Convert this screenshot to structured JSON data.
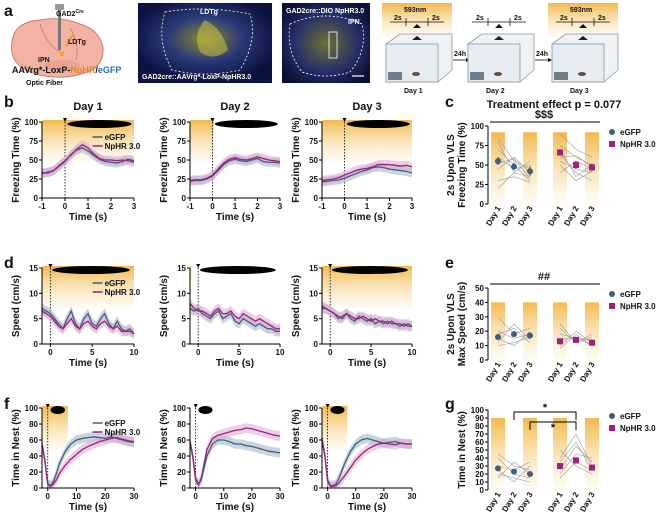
{
  "figure": {
    "panel_labels": [
      "a",
      "b",
      "c",
      "d",
      "e",
      "f",
      "g"
    ],
    "panel_a": {
      "schematic": {
        "mouse_line": "GAD2",
        "mouse_line_sup": "Cre",
        "target": "LDTg",
        "injection": "IPN",
        "virus_prefix": "AAVrg*-LoxP-",
        "virus_npHR": "NpHR",
        "virus_sep": "/",
        "virus_egfp": "eGFP",
        "fiber": "Optic Fiber"
      },
      "micrograph1": {
        "region": "LDTg",
        "caption": "GAD2cre::AAVrg*-LoxP-NpHR3.0"
      },
      "micrograph2": {
        "caption": "GAD2cre::DIO NpHR3.0",
        "region": "IPN"
      },
      "protocol": {
        "light": "593nm",
        "pre": "2s",
        "post": "2s",
        "interval": "24h",
        "days": [
          "Day 1",
          "Day 2",
          "Day 3"
        ]
      }
    },
    "panel_c_title": "Treatment effect p = 0.077",
    "legend": {
      "egfp": "eGFP",
      "nphr": "NpHR 3.0"
    },
    "colors": {
      "egfp": "#3f5f78",
      "nphr": "#a0207e",
      "light": "#f6c15e",
      "egfp_band": "#9fb3c4",
      "nphr_band": "#dba8cf"
    }
  },
  "chart_data": [
    {
      "id": "b1",
      "type": "line",
      "title": "Day 1",
      "xlabel": "Time (s)",
      "ylabel": "Freezing Time (%)",
      "xlim": [
        -1,
        3
      ],
      "ylim": [
        0,
        100
      ],
      "xticks": [
        -1,
        0,
        1,
        2,
        3
      ],
      "yticks": [
        0,
        25,
        50,
        75,
        100
      ],
      "legend": [
        "eGFP",
        "NpHR 3.0"
      ],
      "x": [
        -1,
        -0.75,
        -0.5,
        -0.25,
        0,
        0.25,
        0.5,
        0.75,
        1,
        1.25,
        1.5,
        1.75,
        2,
        2.25,
        2.5,
        2.75,
        3
      ],
      "series": [
        {
          "name": "eGFP",
          "values": [
            32,
            34,
            36,
            42,
            48,
            57,
            63,
            66,
            62,
            56,
            51,
            48,
            47,
            46,
            48,
            51,
            49
          ]
        },
        {
          "name": "NpHR 3.0",
          "values": [
            33,
            33,
            36,
            43,
            49,
            56,
            64,
            70,
            66,
            58,
            52,
            50,
            50,
            49,
            50,
            49,
            47
          ]
        }
      ]
    },
    {
      "id": "b2",
      "type": "line",
      "title": "Day 2",
      "xlabel": "Time (s)",
      "ylabel": "Freezing Time (%)",
      "xlim": [
        -1,
        3
      ],
      "ylim": [
        0,
        100
      ],
      "xticks": [
        -1,
        0,
        1,
        2,
        3
      ],
      "yticks": [
        0,
        25,
        50,
        75,
        100
      ],
      "x": [
        -1,
        -0.75,
        -0.5,
        -0.25,
        0,
        0.25,
        0.5,
        0.75,
        1,
        1.25,
        1.5,
        1.75,
        2,
        2.25,
        2.5,
        2.75,
        3
      ],
      "series": [
        {
          "name": "eGFP",
          "values": [
            22,
            23,
            23,
            25,
            29,
            36,
            44,
            49,
            51,
            49,
            48,
            50,
            52,
            48,
            47,
            47,
            46
          ]
        },
        {
          "name": "NpHR 3.0",
          "values": [
            23,
            24,
            24,
            26,
            30,
            38,
            46,
            51,
            53,
            51,
            50,
            52,
            54,
            52,
            50,
            49,
            48
          ]
        }
      ]
    },
    {
      "id": "b3",
      "type": "line",
      "title": "Day 3",
      "xlabel": "Time (s)",
      "ylabel": "Freezing Time (%)",
      "xlim": [
        -1,
        3
      ],
      "ylim": [
        0,
        100
      ],
      "xticks": [
        -1,
        0,
        1,
        2,
        3
      ],
      "yticks": [
        0,
        25,
        50,
        75,
        100
      ],
      "x": [
        -1,
        -0.75,
        -0.5,
        -0.25,
        0,
        0.25,
        0.5,
        0.75,
        1,
        1.25,
        1.5,
        1.75,
        2,
        2.25,
        2.5,
        2.75,
        3
      ],
      "series": [
        {
          "name": "eGFP",
          "values": [
            21,
            22,
            23,
            24,
            26,
            29,
            32,
            35,
            37,
            40,
            41,
            40,
            38,
            37,
            36,
            35,
            33
          ]
        },
        {
          "name": "NpHR 3.0",
          "values": [
            23,
            24,
            25,
            27,
            30,
            33,
            36,
            38,
            39,
            41,
            44,
            44,
            44,
            43,
            42,
            43,
            41
          ]
        }
      ]
    },
    {
      "id": "c",
      "type": "scatter",
      "title": "Treatment effect p = 0.077",
      "ylabel": "2s Upon VLS Freezing Time (%)",
      "ylim": [
        0,
        100
      ],
      "yticks": [
        0,
        25,
        50,
        75,
        100
      ],
      "categories": [
        "Day 1",
        "Day 2",
        "Day 3",
        "Day 1",
        "Day 2",
        "Day 3"
      ],
      "annotation": "$$$",
      "series": [
        {
          "name": "eGFP",
          "values": [
            55,
            48,
            42
          ],
          "errors": [
            5,
            5,
            6
          ]
        },
        {
          "name": "NpHR 3.0",
          "values": [
            66,
            50,
            47
          ],
          "errors": [
            4,
            5,
            5
          ]
        }
      ]
    },
    {
      "id": "d1",
      "type": "line",
      "xlabel": "Time (s)",
      "ylabel": "Speed (cm/s)",
      "xlim": [
        -1,
        10
      ],
      "ylim": [
        0,
        15
      ],
      "xticks": [
        0,
        5,
        10
      ],
      "yticks": [
        0,
        5,
        10,
        15
      ],
      "legend": [
        "eGFP",
        "NpHR 3.0"
      ],
      "x": [
        -1,
        -0.5,
        0,
        0.5,
        1,
        1.5,
        2,
        2.5,
        3,
        3.5,
        4,
        4.5,
        5,
        5.5,
        6,
        6.5,
        7,
        7.5,
        8,
        8.5,
        9,
        9.5,
        10
      ],
      "series": [
        {
          "name": "eGFP",
          "values": [
            7,
            6.5,
            6,
            5,
            4,
            3,
            5,
            6.5,
            4,
            3,
            5,
            6,
            4,
            3.5,
            5,
            6,
            4,
            3,
            4.5,
            3,
            2.5,
            3,
            2
          ]
        },
        {
          "name": "NpHR 3.0",
          "values": [
            6.5,
            6,
            5.5,
            4.5,
            3.5,
            3,
            4,
            5,
            3.5,
            3,
            4,
            4.5,
            3.5,
            3,
            4,
            4.5,
            3.5,
            3,
            3.5,
            2.5,
            2.5,
            2.5,
            2
          ]
        }
      ]
    },
    {
      "id": "d2",
      "type": "line",
      "xlabel": "Time (s)",
      "ylabel": "Speed (cm/s)",
      "xlim": [
        -1,
        10
      ],
      "ylim": [
        0,
        15
      ],
      "xticks": [
        0,
        5,
        10
      ],
      "yticks": [
        0,
        5,
        10,
        15
      ],
      "x": [
        -1,
        -0.5,
        0,
        0.5,
        1,
        1.5,
        2,
        2.5,
        3,
        3.5,
        4,
        4.5,
        5,
        5.5,
        6,
        6.5,
        7,
        7.5,
        8,
        8.5,
        9,
        9.5,
        10
      ],
      "series": [
        {
          "name": "eGFP",
          "values": [
            7,
            6.5,
            7,
            6,
            5.5,
            5,
            6,
            6.5,
            5,
            5.5,
            6,
            4.5,
            4,
            5,
            4.5,
            4,
            3.5,
            4,
            3.5,
            3,
            3,
            2.5,
            2.5
          ]
        },
        {
          "name": "NpHR 3.0",
          "values": [
            8,
            7,
            6.5,
            6.5,
            6,
            5.5,
            6.5,
            7,
            6,
            6,
            6.5,
            5.5,
            5,
            6,
            5.5,
            5,
            4.5,
            5,
            4.5,
            4,
            3.5,
            3,
            3
          ]
        }
      ]
    },
    {
      "id": "d3",
      "type": "line",
      "xlabel": "Time (s)",
      "ylabel": "Speed (cm/s)",
      "xlim": [
        -1,
        10
      ],
      "ylim": [
        0,
        15
      ],
      "xticks": [
        0,
        5,
        10
      ],
      "yticks": [
        0,
        5,
        10,
        15
      ],
      "x": [
        -1,
        -0.5,
        0,
        0.5,
        1,
        1.5,
        2,
        2.5,
        3,
        3.5,
        4,
        4.5,
        5,
        5.5,
        6,
        6.5,
        7,
        7.5,
        8,
        8.5,
        9,
        9.5,
        10
      ],
      "series": [
        {
          "name": "eGFP",
          "values": [
            7,
            7,
            6.5,
            6,
            5,
            5.5,
            6,
            5,
            4.5,
            5.5,
            5,
            4.5,
            5,
            4,
            4.5,
            4,
            4.5,
            4,
            4,
            3.5,
            4,
            3.5,
            3.5
          ]
        },
        {
          "name": "NpHR 3.0",
          "values": [
            7.5,
            7,
            6.5,
            6,
            5.5,
            5,
            6,
            5.5,
            5,
            5,
            5.5,
            5,
            4.5,
            5,
            4.5,
            4.5,
            4,
            4.5,
            4,
            4,
            3.5,
            4,
            3.5
          ]
        }
      ]
    },
    {
      "id": "e",
      "type": "scatter",
      "ylabel": "2s Upon VLS Max Speed (cm/s)",
      "ylim": [
        0,
        50
      ],
      "yticks": [
        0,
        10,
        20,
        30,
        40,
        50
      ],
      "categories": [
        "Day 1",
        "Day 2",
        "Day 3",
        "Day 1",
        "Day 2",
        "Day 3"
      ],
      "annotation": "##",
      "series": [
        {
          "name": "eGFP",
          "values": [
            16,
            18,
            17
          ],
          "errors": [
            2,
            2,
            2
          ]
        },
        {
          "name": "NpHR 3.0",
          "values": [
            13,
            14,
            12
          ],
          "errors": [
            2,
            2,
            2
          ]
        }
      ]
    },
    {
      "id": "f1",
      "type": "line",
      "xlabel": "Time (s)",
      "ylabel": "Time in Nest (%)",
      "xlim": [
        -2,
        30
      ],
      "ylim": [
        0,
        100
      ],
      "xticks": [
        0,
        10,
        20,
        30
      ],
      "yticks": [
        0,
        20,
        40,
        60,
        80,
        100
      ],
      "legend": [
        "eGFP",
        "NpHR 3.0"
      ],
      "x": [
        -2,
        -1,
        0,
        1,
        2,
        3,
        4,
        6,
        8,
        10,
        12,
        14,
        16,
        18,
        20,
        22,
        24,
        26,
        28,
        30
      ],
      "series": [
        {
          "name": "eGFP",
          "values": [
            55,
            35,
            5,
            3,
            8,
            18,
            30,
            45,
            55,
            60,
            62,
            63,
            64,
            63,
            62,
            64,
            62,
            60,
            58,
            57
          ]
        },
        {
          "name": "NpHR 3.0",
          "values": [
            55,
            33,
            4,
            2,
            5,
            10,
            18,
            28,
            36,
            42,
            48,
            52,
            55,
            58,
            60,
            62,
            63,
            61,
            59,
            58
          ]
        }
      ]
    },
    {
      "id": "f2",
      "type": "line",
      "xlabel": "Time (s)",
      "ylabel": "Time in Nest (%)",
      "xlim": [
        -2,
        30
      ],
      "ylim": [
        0,
        100
      ],
      "xticks": [
        0,
        10,
        20,
        30
      ],
      "yticks": [
        0,
        20,
        40,
        60,
        80,
        100
      ],
      "x": [
        -2,
        -1,
        0,
        1,
        2,
        3,
        4,
        6,
        8,
        10,
        12,
        14,
        16,
        18,
        20,
        22,
        24,
        26,
        28,
        30
      ],
      "series": [
        {
          "name": "eGFP",
          "values": [
            58,
            40,
            12,
            5,
            10,
            25,
            40,
            55,
            60,
            60,
            58,
            55,
            55,
            53,
            52,
            50,
            48,
            46,
            45,
            44
          ]
        },
        {
          "name": "NpHR 3.0",
          "values": [
            58,
            38,
            10,
            4,
            12,
            30,
            48,
            62,
            66,
            68,
            70,
            72,
            73,
            75,
            74,
            72,
            70,
            68,
            66,
            65
          ]
        }
      ]
    },
    {
      "id": "f3",
      "type": "line",
      "xlabel": "Time (s)",
      "ylabel": "Time in Nest (%)",
      "xlim": [
        -2,
        30
      ],
      "ylim": [
        0,
        100
      ],
      "xticks": [
        0,
        10,
        20,
        30
      ],
      "yticks": [
        0,
        20,
        40,
        60,
        80,
        100
      ],
      "x": [
        -2,
        -1,
        0,
        1,
        2,
        3,
        4,
        6,
        8,
        10,
        12,
        14,
        16,
        18,
        20,
        22,
        24,
        26,
        28,
        30
      ],
      "series": [
        {
          "name": "eGFP",
          "values": [
            62,
            42,
            10,
            3,
            3,
            5,
            12,
            30,
            45,
            55,
            60,
            62,
            60,
            58,
            56,
            57,
            58,
            56,
            55,
            55
          ]
        },
        {
          "name": "NpHR 3.0",
          "values": [
            60,
            40,
            8,
            2,
            2,
            3,
            6,
            15,
            25,
            35,
            42,
            48,
            52,
            55,
            56,
            55,
            54,
            56,
            55,
            55
          ]
        }
      ]
    },
    {
      "id": "g",
      "type": "scatter",
      "ylabel": "Time in Nest (%)",
      "ylim": [
        0,
        100
      ],
      "yticks": [
        0,
        10,
        20,
        30,
        40,
        50,
        60,
        70,
        80,
        90,
        100
      ],
      "categories": [
        "Day 1",
        "Day 2",
        "Day 3",
        "Day 1",
        "Day 2",
        "Day 3"
      ],
      "annotation": "*",
      "series": [
        {
          "name": "eGFP",
          "values": [
            27,
            23,
            20
          ],
          "errors": [
            3,
            3,
            3
          ]
        },
        {
          "name": "NpHR 3.0",
          "values": [
            30,
            37,
            28
          ],
          "errors": [
            3,
            4,
            3
          ]
        }
      ]
    }
  ]
}
